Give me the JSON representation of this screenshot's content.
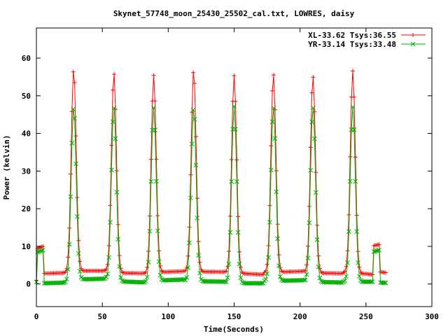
{
  "chart_data": {
    "type": "line",
    "title": "Skynet_57748_moon_25430_25502_cal.txt, LOWRES, daisy",
    "xlabel": "Time(Seconds)",
    "ylabel": "Power (kelvin)",
    "xlim": [
      0,
      300
    ],
    "ylim": [
      -6,
      68
    ],
    "x_ticks": [
      "0",
      "50",
      "100",
      "150",
      "200",
      "250",
      "300"
    ],
    "y_ticks": [
      "0",
      "10",
      "20",
      "30",
      "40",
      "50",
      "60"
    ],
    "x_tick_values": [
      0,
      50,
      100,
      150,
      200,
      250,
      300
    ],
    "y_tick_values": [
      0,
      10,
      20,
      30,
      40,
      50,
      60
    ],
    "grid": false,
    "legend_position": "top-right",
    "series": [
      {
        "name": "XL-33.62 Tsys:36.55",
        "color": "#ff0000",
        "marker": "plus",
        "baseline": [
          [
            0,
            1
          ],
          [
            1,
            9.5
          ],
          [
            5,
            10
          ],
          [
            6,
            2.8
          ],
          [
            25,
            3.0
          ],
          [
            26,
            3.5
          ],
          [
            53,
            3.5
          ],
          [
            54,
            3.0
          ],
          [
            84,
            2.8
          ],
          [
            85,
            3.0
          ],
          [
            112,
            3.4
          ],
          [
            113,
            3.3
          ],
          [
            143,
            3.2
          ],
          [
            144,
            3.0
          ],
          [
            172,
            2.5
          ],
          [
            173,
            3.0
          ],
          [
            203,
            3.4
          ],
          [
            204,
            3.0
          ],
          [
            232,
            2.8
          ],
          [
            233,
            3.0
          ],
          [
            250,
            2.7
          ],
          [
            255,
            2.5
          ],
          [
            256,
            10.2
          ],
          [
            260,
            10.5
          ],
          [
            261,
            3.2
          ],
          [
            265,
            3.0
          ]
        ],
        "peaks": [
          {
            "center": 28.3,
            "peak": 57.0
          },
          {
            "center": 58.8,
            "peak": 56.0
          },
          {
            "center": 89.0,
            "peak": 55.4
          },
          {
            "center": 119.3,
            "peak": 56.8
          },
          {
            "center": 150.0,
            "peak": 55.3
          },
          {
            "center": 179.8,
            "peak": 55.8
          },
          {
            "center": 209.8,
            "peak": 55.2
          },
          {
            "center": 240.0,
            "peak": 56.6
          }
        ]
      },
      {
        "name": "YR-33.14 Tsys:33.48",
        "color": "#00b000",
        "marker": "cross",
        "baseline": [
          [
            0,
            0.5
          ],
          [
            1,
            8.5
          ],
          [
            5,
            9.0
          ],
          [
            6,
            0.2
          ],
          [
            25,
            0.4
          ],
          [
            26,
            1.2
          ],
          [
            53,
            1.4
          ],
          [
            54,
            0.8
          ],
          [
            84,
            0.4
          ],
          [
            85,
            0.8
          ],
          [
            112,
            1.2
          ],
          [
            113,
            0.8
          ],
          [
            143,
            0.6
          ],
          [
            144,
            0.2
          ],
          [
            172,
            0.2
          ],
          [
            173,
            0.8
          ],
          [
            203,
            1.0
          ],
          [
            204,
            0.6
          ],
          [
            232,
            0.4
          ],
          [
            233,
            0.6
          ],
          [
            250,
            0.6
          ],
          [
            255,
            0.6
          ],
          [
            256,
            8.6
          ],
          [
            260,
            9.0
          ],
          [
            261,
            0.4
          ],
          [
            265,
            0.3
          ]
        ],
        "peaks": [
          {
            "center": 28.3,
            "peak": 47.0
          },
          {
            "center": 58.8,
            "peak": 47.0
          },
          {
            "center": 89.0,
            "peak": 46.8
          },
          {
            "center": 119.3,
            "peak": 46.8
          },
          {
            "center": 150.0,
            "peak": 47.2
          },
          {
            "center": 179.8,
            "peak": 47.0
          },
          {
            "center": 209.8,
            "peak": 47.0
          },
          {
            "center": 240.0,
            "peak": 47.0
          }
        ]
      }
    ]
  }
}
